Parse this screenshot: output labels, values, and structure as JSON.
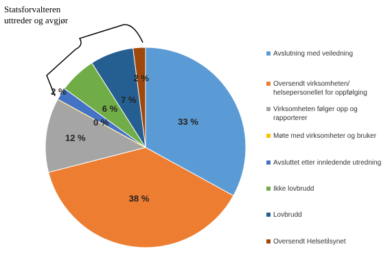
{
  "chart_data": {
    "type": "pie",
    "annotation": [
      "Statsforvalteren",
      "uttreder og avgjør"
    ],
    "categories": [
      "Avslutning med veiledning",
      "Oversendt virksomheten/ helsepersonellet for oppfølging",
      "Virksomheten følger opp og rapporterer",
      "Møte med virksomheter og bruker",
      "Avsluttet etter innledende utredning",
      "Ikke lovbrudd",
      "Lovbrudd",
      "Oversendt Helsetilsynet"
    ],
    "values": [
      33,
      38,
      12,
      0,
      2,
      6,
      7,
      2
    ],
    "value_labels": [
      "33 %",
      "38 %",
      "12 %",
      "0 %",
      "2 %",
      "6 %",
      "7 %",
      "2 %"
    ],
    "colors": [
      "#5b9bd5",
      "#ed7d31",
      "#a5a5a5",
      "#ffc000",
      "#4472c4",
      "#70ad47",
      "#255e91",
      "#9e480e"
    ]
  }
}
